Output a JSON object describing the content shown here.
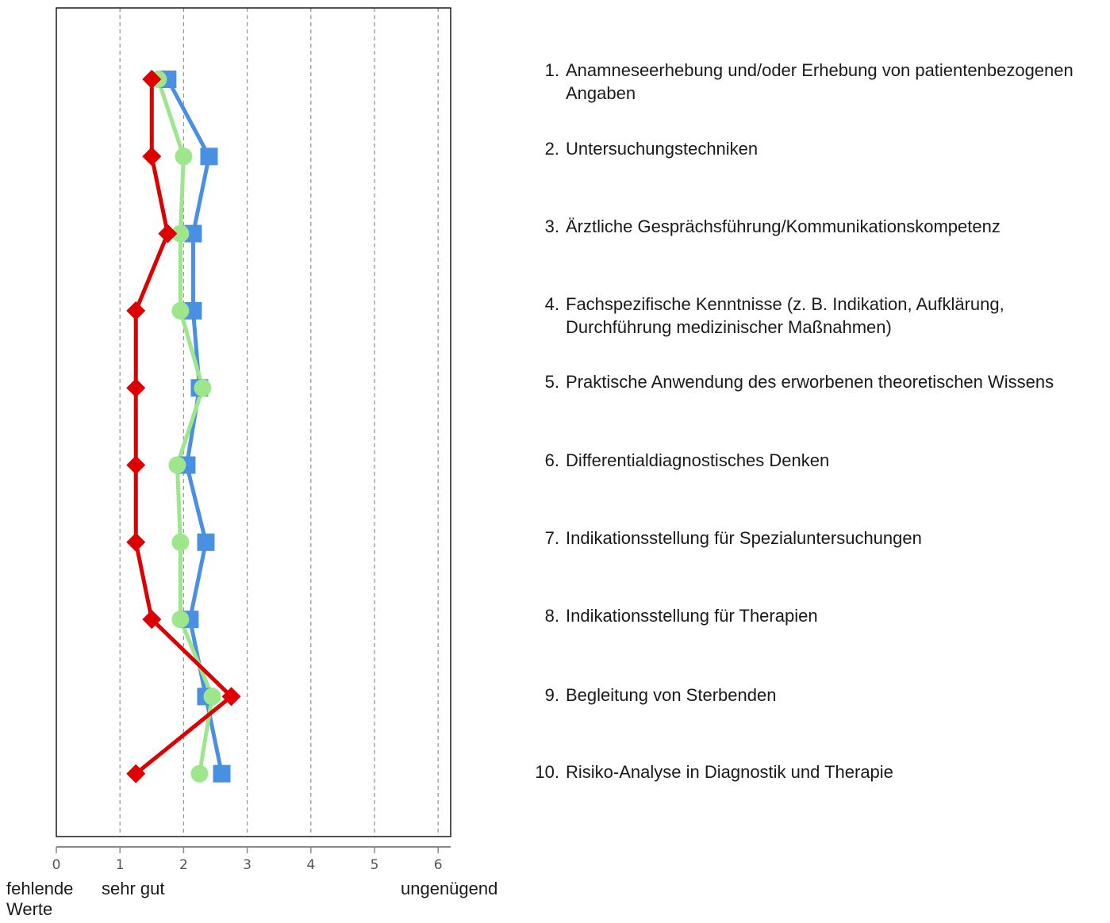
{
  "chart_data": {
    "type": "line",
    "orientation": "horizontal-values",
    "x_ticks": [
      "0",
      "1",
      "2",
      "3",
      "4",
      "5",
      "6"
    ],
    "xlim": [
      0,
      6.2
    ],
    "grid": true,
    "scale_labels": {
      "zero": "fehlende Werte",
      "best": "sehr gut",
      "worst": "ungenügend"
    },
    "categories": [
      {
        "num": "1.",
        "text": "Anamneseerhebung und/oder Erhebung von patientenbezogenen Angaben"
      },
      {
        "num": "2.",
        "text": "Untersuchungstechniken"
      },
      {
        "num": "3.",
        "text": "Ärztliche Gesprächsführung/Kommunikationskompetenz"
      },
      {
        "num": "4.",
        "text": "Fachspezifische Kenntnisse (z. B. Indikation, Aufklärung, Durchführung medizinischer Maßnahmen)"
      },
      {
        "num": "5.",
        "text": "Praktische Anwendung des erworbenen theoretischen Wissens"
      },
      {
        "num": "6.",
        "text": "Differentialdiagnostisches Denken"
      },
      {
        "num": "7.",
        "text": "Indikationsstellung für Spezialuntersuchungen"
      },
      {
        "num": "8.",
        "text": "Indikationsstellung für Therapien"
      },
      {
        "num": "9.",
        "text": "Begleitung von Sterbenden"
      },
      {
        "num": "10.",
        "text": "Risiko-Analyse in Diagnostik und Therapie"
      }
    ],
    "series": [
      {
        "color": "#4a90e2",
        "marker": "square",
        "values": [
          1.75,
          2.4,
          2.15,
          2.15,
          2.25,
          2.05,
          2.35,
          2.1,
          2.35,
          2.6
        ]
      },
      {
        "color": "#9de68c",
        "marker": "circle",
        "values": [
          1.6,
          2.0,
          1.95,
          1.95,
          2.3,
          1.9,
          1.95,
          1.95,
          2.45,
          2.25
        ]
      },
      {
        "color": "#dd0000",
        "marker": "diamond",
        "values": [
          1.5,
          1.5,
          1.75,
          1.25,
          1.25,
          1.25,
          1.25,
          1.5,
          2.75,
          1.25
        ]
      }
    ]
  }
}
